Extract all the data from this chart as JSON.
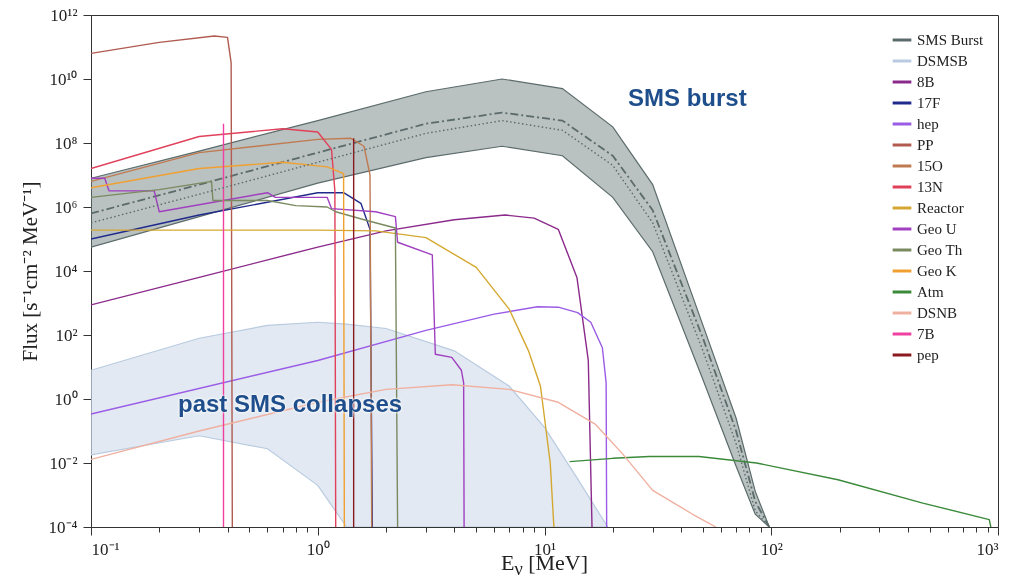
{
  "chart_data": {
    "type": "line",
    "xlabel": "E$_{ν}$ [MeV]",
    "ylabel": "Flux [s⁻¹cm⁻² MeV⁻¹]",
    "annotations": [
      "SMS burst",
      "past SMS collapses"
    ],
    "log": "xy",
    "legend": "top right",
    "xlim": [
      0.1,
      1000
    ],
    "ylim": [
      0.0001,
      1000000000000.0
    ],
    "xticks": [
      {
        "value": 0.1,
        "label": "10⁻¹"
      },
      {
        "value": 0.2,
        "label": null
      },
      {
        "value": 0.3,
        "label": null
      },
      {
        "value": 0.4,
        "label": null
      },
      {
        "value": 0.5,
        "label": null
      },
      {
        "value": 0.6,
        "label": null
      },
      {
        "value": 0.7,
        "label": null
      },
      {
        "value": 0.8,
        "label": null
      },
      {
        "value": 0.9,
        "label": null
      },
      {
        "value": 1,
        "label": "10⁰"
      },
      {
        "value": 2,
        "label": null
      },
      {
        "value": 3,
        "label": null
      },
      {
        "value": 4,
        "label": null
      },
      {
        "value": 5,
        "label": null
      },
      {
        "value": 6,
        "label": null
      },
      {
        "value": 7,
        "label": null
      },
      {
        "value": 8,
        "label": null
      },
      {
        "value": 9,
        "label": null
      },
      {
        "value": 10,
        "label": "10¹"
      },
      {
        "value": 20,
        "label": null
      },
      {
        "value": 30,
        "label": null
      },
      {
        "value": 40,
        "label": null
      },
      {
        "value": 50,
        "label": null
      },
      {
        "value": 60,
        "label": null
      },
      {
        "value": 70,
        "label": null
      },
      {
        "value": 80,
        "label": null
      },
      {
        "value": 90,
        "label": null
      },
      {
        "value": 100,
        "label": "10²"
      },
      {
        "value": 200,
        "label": null
      },
      {
        "value": 300,
        "label": null
      },
      {
        "value": 400,
        "label": null
      },
      {
        "value": 500,
        "label": null
      },
      {
        "value": 600,
        "label": null
      },
      {
        "value": 700,
        "label": null
      },
      {
        "value": 800,
        "label": null
      },
      {
        "value": 900,
        "label": null
      },
      {
        "value": 1000,
        "label": "10³"
      }
    ],
    "yticks": [
      {
        "value": 0.0001,
        "label": "10⁻⁴"
      },
      {
        "value": 0.01,
        "label": "10⁻²"
      },
      {
        "value": 1,
        "label": "10⁰"
      },
      {
        "value": 100.0,
        "label": "10²"
      },
      {
        "value": 10000.0,
        "label": "10⁴"
      },
      {
        "value": 1000000.0,
        "label": "10⁶"
      },
      {
        "value": 100000000.0,
        "label": "10⁸"
      },
      {
        "value": 10000000000.0,
        "label": "10¹⁰"
      },
      {
        "value": 1000000000000.0,
        "label": "10¹²"
      }
    ],
    "series": [
      {
        "name": "SMS Burst",
        "color": "#5b6b6b",
        "line_style": "dashed",
        "x": [
          0.1,
          0.3,
          1,
          3,
          6.5,
          12,
          20,
          30,
          50,
          70,
          85,
          98
        ],
        "values": [
          630000.0,
          5000000.0,
          50000000.0,
          400000000.0,
          890000000.0,
          500000000.0,
          40000000.0,
          790000.0,
          79,
          0.1,
          0.00063,
          0.0001
        ],
        "lower": [
          56000.0,
          500000.0,
          5600000.0,
          35000000.0,
          79000000.0,
          40000000.0,
          2000000.0,
          40000.0,
          4,
          0.0079,
          0.00025,
          0.0001
        ],
        "upper": [
          7900000.0,
          56000000.0,
          500000000.0,
          4000000000.0,
          10000000000.0,
          5000000000.0,
          320000000.0,
          5000000.0,
          200,
          0.25,
          0.0013,
          0.0001
        ]
      },
      {
        "name": "DSMSB",
        "color": "#b9cbe0",
        "x": [
          0.1,
          0.3,
          0.6,
          1,
          1.34,
          2,
          4,
          7,
          10,
          14,
          19
        ],
        "values": [
          null,
          null,
          null,
          null,
          null,
          null,
          null,
          null,
          null,
          null,
          null
        ],
        "lower": [
          0.018,
          0.071,
          0.028,
          0.002,
          0.0001,
          0.0001,
          0.0001,
          0.0001,
          0.0001,
          0.0001,
          0.0001
        ],
        "upper": [
          7.9,
          79,
          200,
          250,
          220,
          160,
          32,
          2.5,
          0.13,
          0.0032,
          0.0001
        ]
      },
      {
        "name": "8B",
        "color": "#8b2a8b",
        "x": [
          0.1,
          0.3,
          1,
          2,
          4,
          6.7,
          9,
          11.5,
          13.9,
          15.6,
          16.2
        ],
        "values": [
          870,
          6300,
          56000.0,
          180000.0,
          400000.0,
          560000.0,
          450000.0,
          200000.0,
          6300,
          16,
          0.0001
        ]
      },
      {
        "name": "17F",
        "color": "#1f2a8a",
        "x": [
          0.1,
          0.3,
          1,
          1.3,
          1.55,
          1.7,
          1.74
        ],
        "values": [
          100000.0,
          560000.0,
          2800000.0,
          2800000.0,
          1300000.0,
          200000.0,
          0.0001
        ]
      },
      {
        "name": "hep",
        "color": "#9a5ce6",
        "x": [
          0.1,
          1,
          3,
          6,
          9.3,
          11.5,
          14,
          16,
          18,
          18.7,
          18.8
        ],
        "values": [
          0.34,
          16,
          140,
          450,
          760,
          740,
          500,
          250,
          40,
          3.2,
          0.0001
        ]
      },
      {
        "name": "PP",
        "color": "#b05a50",
        "x": [
          0.1,
          0.2,
          0.35,
          0.4,
          0.415,
          0.42
        ],
        "values": [
          63000000000.0,
          140000000000.0,
          220000000000.0,
          200000000000.0,
          32000000000.0,
          0.0001
        ]
      },
      {
        "name": "15O",
        "color": "#c07a50",
        "x": [
          0.1,
          0.3,
          1,
          1.4,
          1.6,
          1.7,
          1.73
        ],
        "values": [
          6300000.0,
          50000000.0,
          130000000.0,
          140000000.0,
          79000000.0,
          10000000.0,
          0.0001
        ]
      },
      {
        "name": "13N",
        "color": "#e0405a",
        "x": [
          0.1,
          0.3,
          0.7,
          1.0,
          1.15,
          1.19,
          1.2
        ],
        "values": [
          16000000.0,
          160000000.0,
          280000000.0,
          220000000.0,
          63000000.0,
          3200000.0,
          0.0001
        ]
      },
      {
        "name": "Reactor",
        "color": "#d4a830",
        "x": [
          0.1,
          1,
          1.8,
          3,
          5,
          7,
          8.5,
          9.6,
          10.6,
          11
        ],
        "values": [
          190000.0,
          190000.0,
          180000.0,
          110000.0,
          13000.0,
          630,
          32,
          2.5,
          0.01,
          0.0001
        ]
      },
      {
        "name": "Geo U",
        "color": "#a040c0",
        "x": [
          0.1,
          0.115,
          0.12,
          0.19,
          0.2,
          0.6,
          0.65,
          1.1,
          1.15,
          1.8,
          2.2,
          2.25,
          3.2,
          3.3,
          3.9,
          4.3,
          4.4,
          4.42
        ],
        "values": [
          7900000.0,
          7900000.0,
          3200000.0,
          3200000.0,
          710000.0,
          2800000.0,
          2000000.0,
          2000000.0,
          890000.0,
          710000.0,
          500000.0,
          79000.0,
          32000.0,
          25,
          20,
          7.9,
          3.2,
          0.0001
        ]
      },
      {
        "name": "Geo Th",
        "color": "#7a8a60",
        "x": [
          0.1,
          0.2,
          0.34,
          0.345,
          0.6,
          0.8,
          1.1,
          1.2,
          1.6,
          2.2,
          2.25
        ],
        "values": [
          2000000.0,
          3500000.0,
          6300000.0,
          1600000.0,
          1600000.0,
          1100000.0,
          1000000.0,
          710000.0,
          400000.0,
          220000.0,
          0.0001
        ]
      },
      {
        "name": "Geo K",
        "color": "#f0a030",
        "x": [
          0.1,
          0.3,
          0.7,
          1.1,
          1.3,
          1.31
        ],
        "values": [
          4000000.0,
          16000000.0,
          25000000.0,
          18000000.0,
          11000000.0,
          0.0001
        ]
      },
      {
        "name": "Atm",
        "color": "#3a8a3a",
        "x": [
          12.9,
          20,
          29,
          48,
          86,
          197,
          466,
          915,
          930
        ],
        "values": [
          0.011,
          0.014,
          0.016,
          0.016,
          0.01,
          0.003,
          0.00056,
          0.00017,
          0.0001
        ]
      },
      {
        "name": "DSNB",
        "color": "#f0b0a0",
        "x": [
          0.1,
          0.3,
          1,
          2,
          3.9,
          7,
          11.5,
          16.8,
          22,
          30,
          45,
          57
        ],
        "values": [
          0.013,
          0.1,
          0.79,
          2,
          2.8,
          2,
          0.79,
          0.16,
          0.02,
          0.0014,
          0.00025,
          0.0001
        ]
      },
      {
        "name": "7B",
        "color": "#f040a0",
        "x": [
          0.384,
          0.384
        ],
        "values": [
          0.0001,
          400000000.0
        ]
      },
      {
        "name": "pep",
        "color": "#8a1a20",
        "x": [
          1.44,
          1.44
        ],
        "values": [
          0.0001,
          140000000.0
        ]
      },
      {
        "color": "#5b6b6b",
        "line_style": "dotted",
        "x": [
          0.1,
          0.3,
          1,
          3,
          6.5,
          12,
          20,
          30,
          50,
          70,
          85,
          98
        ],
        "values": [
          320000.0,
          2500000.0,
          25000000.0,
          200000000.0,
          500000000.0,
          250000000.0,
          20000000.0,
          320000.0,
          32,
          0.04,
          0.00032,
          0.0001
        ]
      }
    ]
  }
}
